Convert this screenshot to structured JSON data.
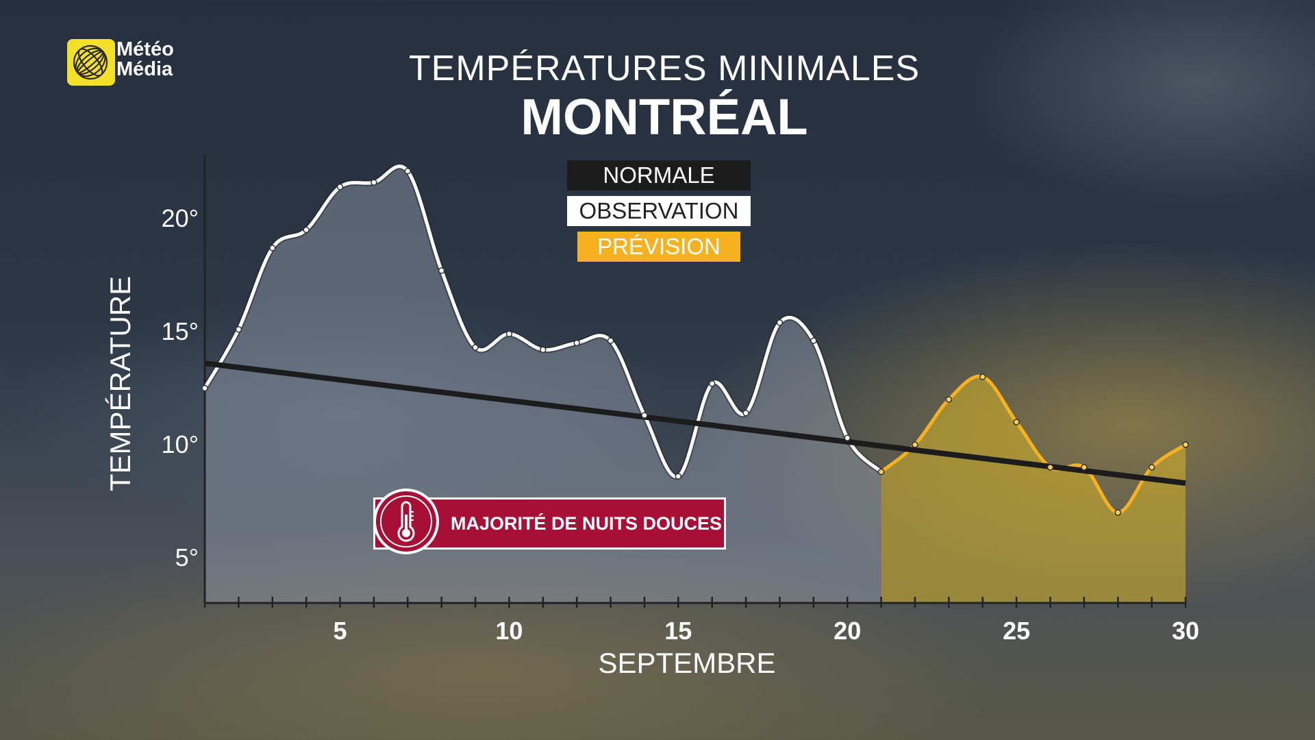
{
  "brand": {
    "name_line1": "Météo",
    "name_line2": "Média",
    "icon": "meteomedia-globe-icon",
    "color": "#f3e02a"
  },
  "title": "TEMPÉRATURES MINIMALES",
  "subtitle": "MONTRÉAL",
  "legend": [
    {
      "label": "NORMALE",
      "color": "#1c1c1c"
    },
    {
      "label": "OBSERVATION",
      "color": "#ffffff"
    },
    {
      "label": "PRÉVISION",
      "color": "#f5b120"
    }
  ],
  "badge": {
    "label": "MAJORITÉ DE NUITS DOUCES",
    "icon": "thermometer-icon",
    "color": "#a80f36"
  },
  "chart_data": {
    "type": "line",
    "xlabel": "SEPTEMBRE",
    "ylabel": "TEMPÉRATURE",
    "xlim": [
      1,
      30
    ],
    "ylim": [
      3,
      23
    ],
    "xticks": [
      5,
      10,
      15,
      20,
      25,
      30
    ],
    "yticks": [
      5,
      10,
      15,
      20
    ],
    "ytick_labels": [
      "5°",
      "10°",
      "15°",
      "20°"
    ],
    "grid": false,
    "series": [
      {
        "name": "OBSERVATION",
        "color": "#ffffff",
        "x": [
          1,
          2,
          3,
          4,
          5,
          6,
          7,
          8,
          9,
          10,
          11,
          12,
          13,
          14,
          15,
          16,
          17,
          18,
          19,
          20,
          21
        ],
        "y": [
          12.5,
          15.1,
          18.7,
          19.5,
          21.4,
          21.6,
          22.1,
          17.7,
          14.3,
          14.9,
          14.2,
          14.5,
          14.6,
          11.3,
          8.6,
          12.7,
          11.4,
          15.4,
          14.6,
          10.3,
          8.8
        ]
      },
      {
        "name": "PRÉVISION",
        "color": "#f5b120",
        "x": [
          21,
          22,
          23,
          24,
          25,
          26,
          27,
          28,
          29,
          30
        ],
        "y": [
          8.8,
          10.0,
          12.0,
          13.0,
          11.0,
          9.0,
          9.0,
          7.0,
          9.0,
          10.0
        ]
      },
      {
        "name": "NORMALE",
        "color": "#1c1c1c",
        "x": [
          1,
          30
        ],
        "y": [
          13.6,
          8.3
        ]
      }
    ]
  }
}
